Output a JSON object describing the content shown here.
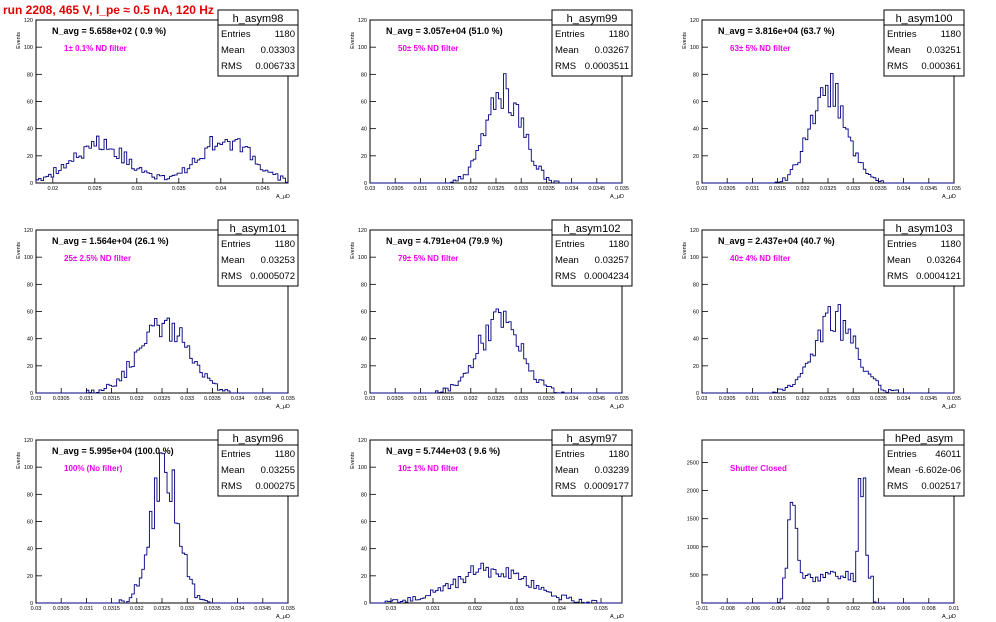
{
  "run_title": "run 2208,   465 V, I_pe ≈ 0.5 nA, 120 Hz",
  "colors": {
    "title": "#e00000",
    "histogram": "#000080",
    "annotation": "#ee00ee",
    "axis": "#000000"
  },
  "stats_labels": {
    "entries": "Entries",
    "mean": "Mean",
    "rms": "RMS"
  },
  "chart_data": [
    {
      "type": "histogram",
      "name": "h_asym98",
      "navg": "N_avg = 5.658e+02 ( 0.9 %)",
      "filter": "1± 0.1% ND filter",
      "entries": "1180",
      "mean": "0.03303",
      "rms": "0.006733",
      "xlabel": "A_μD",
      "ylabel": "Events",
      "xlim": [
        0.018,
        0.048
      ],
      "ylim": [
        0,
        120
      ],
      "x_ticks": [
        0.02,
        0.025,
        0.03,
        0.035,
        0.04,
        0.045
      ],
      "x_tick_labels": [
        "0.02",
        "0.025",
        "0.03",
        "0.035",
        "0.04",
        "0.045"
      ],
      "y_ticks": [
        0,
        20,
        40,
        60,
        80,
        100,
        120
      ],
      "y_tick_labels": [
        "0",
        "20",
        "40",
        "60",
        "80",
        "100",
        "120"
      ],
      "peaks": [
        [
          0.0255,
          0.0032,
          30
        ],
        [
          0.0405,
          0.0032,
          31
        ]
      ],
      "seed": 98
    },
    {
      "type": "histogram",
      "name": "h_asym99",
      "navg": "N_avg = 3.057e+04 (51.0 %)",
      "filter": "50± 5% ND filter",
      "entries": "1180",
      "mean": "0.03267",
      "rms": "0.0003511",
      "xlabel": "A_μD",
      "ylabel": "Events",
      "xlim": [
        0.03,
        0.035
      ],
      "ylim": [
        0,
        120
      ],
      "x_ticks": [
        0.03,
        0.0305,
        0.031,
        0.0315,
        0.032,
        0.0325,
        0.033,
        0.0335,
        0.034,
        0.0345,
        0.035
      ],
      "x_tick_labels": [
        "0.03",
        "0.0305",
        "0.031",
        "0.0315",
        "0.032",
        "0.0325",
        "0.033",
        "0.0335",
        "0.034",
        "0.0345",
        "0.035"
      ],
      "y_ticks": [
        0,
        20,
        40,
        60,
        80,
        100,
        120
      ],
      "y_tick_labels": [
        "0",
        "20",
        "40",
        "60",
        "80",
        "100",
        "120"
      ],
      "peaks": [
        [
          0.03267,
          0.00035,
          68
        ]
      ],
      "seed": 99
    },
    {
      "type": "histogram",
      "name": "h_asym100",
      "navg": "N_avg = 3.816e+04 (63.7 %)",
      "filter": "63± 5% ND filter",
      "entries": "1180",
      "mean": "0.03251",
      "rms": "0.000361",
      "xlabel": "A_μD",
      "ylabel": "Events",
      "xlim": [
        0.03,
        0.035
      ],
      "ylim": [
        0,
        120
      ],
      "x_ticks": [
        0.03,
        0.0305,
        0.031,
        0.0315,
        0.032,
        0.0325,
        0.033,
        0.0335,
        0.034,
        0.0345,
        0.035
      ],
      "x_tick_labels": [
        "0.03",
        "0.0305",
        "0.031",
        "0.0315",
        "0.032",
        "0.0325",
        "0.033",
        "0.0335",
        "0.034",
        "0.0345",
        "0.035"
      ],
      "y_ticks": [
        0,
        20,
        40,
        60,
        80,
        100,
        120
      ],
      "y_tick_labels": [
        "0",
        "20",
        "40",
        "60",
        "80",
        "100",
        "120"
      ],
      "peaks": [
        [
          0.03251,
          0.00036,
          66
        ]
      ],
      "seed": 100
    },
    {
      "type": "histogram",
      "name": "h_asym101",
      "navg": "N_avg = 1.564e+04 (26.1 %)",
      "filter": "25± 2.5% ND filter",
      "entries": "1180",
      "mean": "0.03253",
      "rms": "0.0005072",
      "xlabel": "A_μD",
      "ylabel": "Events",
      "xlim": [
        0.03,
        0.035
      ],
      "ylim": [
        0,
        120
      ],
      "x_ticks": [
        0.03,
        0.0305,
        0.031,
        0.0315,
        0.032,
        0.0325,
        0.033,
        0.0335,
        0.034,
        0.0345,
        0.035
      ],
      "x_tick_labels": [
        "0.03",
        "0.0305",
        "0.031",
        "0.0315",
        "0.032",
        "0.0325",
        "0.033",
        "0.0335",
        "0.034",
        "0.0345",
        "0.035"
      ],
      "y_ticks": [
        0,
        20,
        40,
        60,
        80,
        100,
        120
      ],
      "y_tick_labels": [
        "0",
        "20",
        "40",
        "60",
        "80",
        "100",
        "120"
      ],
      "peaks": [
        [
          0.03253,
          0.0005,
          50
        ]
      ],
      "seed": 101
    },
    {
      "type": "histogram",
      "name": "h_asym102",
      "navg": "N_avg = 4.791e+04 (79.9 %)",
      "filter": "79± 5% ND filter",
      "entries": "1180",
      "mean": "0.03257",
      "rms": "0.0004234",
      "xlabel": "A_μD",
      "ylabel": "Events",
      "xlim": [
        0.03,
        0.035
      ],
      "ylim": [
        0,
        120
      ],
      "x_ticks": [
        0.03,
        0.0305,
        0.031,
        0.0315,
        0.032,
        0.0325,
        0.033,
        0.0335,
        0.034,
        0.0345,
        0.035
      ],
      "x_tick_labels": [
        "0.03",
        "0.0305",
        "0.031",
        "0.0315",
        "0.032",
        "0.0325",
        "0.033",
        "0.0335",
        "0.034",
        "0.0345",
        "0.035"
      ],
      "y_ticks": [
        0,
        20,
        40,
        60,
        80,
        100,
        120
      ],
      "y_tick_labels": [
        "0",
        "20",
        "40",
        "60",
        "80",
        "100",
        "120"
      ],
      "peaks": [
        [
          0.03257,
          0.00042,
          53
        ]
      ],
      "seed": 102
    },
    {
      "type": "histogram",
      "name": "h_asym103",
      "navg": "N_avg = 2.437e+04 (40.7 %)",
      "filter": "40± 4% ND filter",
      "entries": "1180",
      "mean": "0.03264",
      "rms": "0.0004121",
      "xlabel": "A_μD",
      "ylabel": "Events",
      "xlim": [
        0.03,
        0.035
      ],
      "ylim": [
        0,
        120
      ],
      "x_ticks": [
        0.03,
        0.0305,
        0.031,
        0.0315,
        0.032,
        0.0325,
        0.033,
        0.0335,
        0.034,
        0.0345,
        0.035
      ],
      "x_tick_labels": [
        "0.03",
        "0.0305",
        "0.031",
        "0.0315",
        "0.032",
        "0.0325",
        "0.033",
        "0.0335",
        "0.034",
        "0.0345",
        "0.035"
      ],
      "y_ticks": [
        0,
        20,
        40,
        60,
        80,
        100,
        120
      ],
      "y_tick_labels": [
        "0",
        "20",
        "40",
        "60",
        "80",
        "100",
        "120"
      ],
      "peaks": [
        [
          0.03264,
          0.00041,
          55
        ]
      ],
      "seed": 103
    },
    {
      "type": "histogram",
      "name": "h_asym96",
      "navg": "N_avg = 5.995e+04 (100.0 %)",
      "filter": "100% (No filter)",
      "entries": "1180",
      "mean": "0.03255",
      "rms": "0.000275",
      "xlabel": "A_μD",
      "ylabel": "Events",
      "xlim": [
        0.03,
        0.035
      ],
      "ylim": [
        0,
        120
      ],
      "x_ticks": [
        0.03,
        0.0305,
        0.031,
        0.0315,
        0.032,
        0.0325,
        0.033,
        0.0335,
        0.034,
        0.0345,
        0.035
      ],
      "x_tick_labels": [
        "0.03",
        "0.0305",
        "0.031",
        "0.0315",
        "0.032",
        "0.0325",
        "0.033",
        "0.0335",
        "0.034",
        "0.0345",
        "0.035"
      ],
      "y_ticks": [
        0,
        20,
        40,
        60,
        80,
        100,
        120
      ],
      "y_tick_labels": [
        "0",
        "20",
        "40",
        "60",
        "80",
        "100",
        "120"
      ],
      "peaks": [
        [
          0.03255,
          0.00027,
          100
        ]
      ],
      "seed": 96
    },
    {
      "type": "histogram",
      "name": "h_asym97",
      "navg": "N_avg = 5.744e+03 ( 9.6 %)",
      "filter": "10± 1% ND filter",
      "entries": "1180",
      "mean": "0.03239",
      "rms": "0.0009177",
      "xlabel": "A_μD",
      "ylabel": "Events",
      "xlim": [
        0.0295,
        0.0355
      ],
      "ylim": [
        0,
        120
      ],
      "x_ticks": [
        0.03,
        0.031,
        0.032,
        0.033,
        0.034,
        0.035
      ],
      "x_tick_labels": [
        "0.03",
        "0.031",
        "0.032",
        "0.033",
        "0.034",
        "0.035"
      ],
      "y_ticks": [
        0,
        20,
        40,
        60,
        80,
        100,
        120
      ],
      "y_tick_labels": [
        "0",
        "20",
        "40",
        "60",
        "80",
        "100",
        "120"
      ],
      "peaks": [
        [
          0.03239,
          0.0009,
          25
        ]
      ],
      "seed": 97
    },
    {
      "type": "histogram",
      "name": "hPed_asym",
      "navg": "",
      "filter": "Shutter Closed",
      "entries": "46011",
      "mean": "-6.602e-06",
      "rms": "0.002517",
      "xlabel": "A_μD",
      "ylabel": "",
      "xlim": [
        -0.01,
        0.01
      ],
      "ylim": [
        0,
        2900
      ],
      "x_ticks": [
        -0.01,
        -0.008,
        -0.006,
        -0.004,
        -0.002,
        0,
        0.002,
        0.004,
        0.006,
        0.008,
        0.01
      ],
      "x_tick_labels": [
        "-0.01",
        "-0.008",
        "-0.006",
        "-0.004",
        "-0.002",
        "0",
        "0.002",
        "0.004",
        "0.006",
        "0.008",
        "0.01"
      ],
      "y_ticks": [
        0,
        500,
        1000,
        1500,
        2000,
        2500
      ],
      "y_tick_labels": [
        "0",
        "500",
        "1000",
        "1500",
        "2000",
        "2500"
      ],
      "peaks": [
        [
          -0.0028,
          0.00035,
          1850
        ],
        [
          0.0027,
          0.00032,
          2350
        ]
      ],
      "baseline": 480,
      "baseline_range": [
        -0.0035,
        0.0035
      ],
      "seed": 11
    }
  ]
}
